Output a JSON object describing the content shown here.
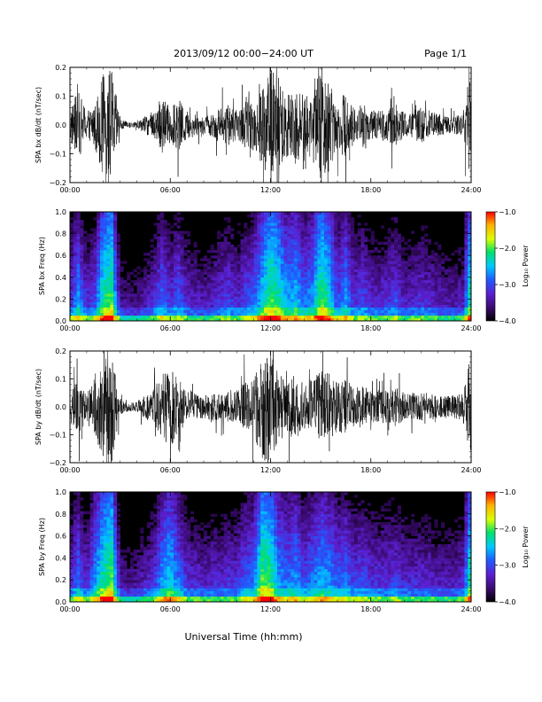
{
  "header": {
    "title": "2013/09/12  00:00−24:00 UT",
    "page": "Page 1/1"
  },
  "footer": {
    "xlabel": "Universal Time (hh:mm)"
  },
  "colors": {
    "trace": "#000000",
    "colormap": [
      "#000000",
      "#3a0a6e",
      "#5b1fd0",
      "#1f5cff",
      "#00c8ff",
      "#00e06a",
      "#d8ff00",
      "#ffb000",
      "#ff0000"
    ]
  },
  "chart_data": [
    {
      "type": "line",
      "ylabel": "SPA bx dB/dt (nT/sec)",
      "x_ticks": [
        "00:00",
        "06:00",
        "12:00",
        "18:00",
        "24:00"
      ],
      "xlim_hours": [
        0,
        24
      ],
      "ylim": [
        -0.2,
        0.2
      ],
      "y_ticks": [
        "0.2",
        "0.1",
        "0.0",
        "−0.1",
        "−0.2"
      ],
      "y_tick_values": [
        0.2,
        0.1,
        0.0,
        -0.1,
        -0.2
      ],
      "envelope": {
        "hours": [
          0.0,
          0.5,
          1.0,
          1.5,
          2.0,
          2.5,
          3.0,
          3.5,
          4.0,
          4.5,
          5.0,
          5.5,
          6.0,
          6.5,
          7.0,
          7.5,
          8.0,
          8.5,
          9.0,
          9.5,
          10.0,
          10.5,
          11.0,
          11.5,
          12.0,
          12.5,
          13.0,
          13.5,
          14.0,
          14.5,
          15.0,
          15.5,
          16.0,
          16.5,
          17.0,
          17.5,
          18.0,
          18.5,
          19.0,
          19.5,
          20.0,
          20.5,
          21.0,
          21.5,
          22.0,
          22.5,
          23.0,
          23.5,
          24.0
        ],
        "amplitude": [
          0.06,
          0.12,
          0.05,
          0.08,
          0.18,
          0.2,
          0.02,
          0.01,
          0.01,
          0.03,
          0.05,
          0.1,
          0.06,
          0.09,
          0.05,
          0.04,
          0.03,
          0.04,
          0.06,
          0.07,
          0.05,
          0.08,
          0.09,
          0.15,
          0.2,
          0.17,
          0.12,
          0.14,
          0.1,
          0.12,
          0.2,
          0.16,
          0.08,
          0.12,
          0.06,
          0.08,
          0.05,
          0.05,
          0.06,
          0.08,
          0.04,
          0.05,
          0.06,
          0.05,
          0.04,
          0.03,
          0.03,
          0.04,
          0.2
        ]
      }
    },
    {
      "type": "heatmap",
      "ylabel": "SPA bx Freq (Hz)",
      "x_ticks": [
        "00:00",
        "06:00",
        "12:00",
        "18:00",
        "24:00"
      ],
      "xlim_hours": [
        0,
        24
      ],
      "ylim": [
        0.0,
        1.0
      ],
      "y_ticks": [
        "1.0",
        "0.8",
        "0.6",
        "0.4",
        "0.2",
        "0.0"
      ],
      "y_tick_values": [
        1.0,
        0.8,
        0.6,
        0.4,
        0.2,
        0.0
      ],
      "colorbar": {
        "label": "Log₁₀ Power",
        "ticks": [
          "−1.0",
          "−2.0",
          "−3.0",
          "−4.0"
        ],
        "tick_values": [
          -1.0,
          -2.0,
          -3.0,
          -4.0
        ],
        "range": [
          -4.0,
          -1.0
        ]
      }
    },
    {
      "type": "line",
      "ylabel": "SPA by dB/dt (nT/sec)",
      "x_ticks": [
        "00:00",
        "06:00",
        "12:00",
        "18:00",
        "24:00"
      ],
      "xlim_hours": [
        0,
        24
      ],
      "ylim": [
        -0.2,
        0.2
      ],
      "y_ticks": [
        "0.2",
        "0.1",
        "0.0",
        "−0.1",
        "−0.2"
      ],
      "y_tick_values": [
        0.2,
        0.1,
        0.0,
        -0.1,
        -0.2
      ],
      "envelope": {
        "hours": [
          0.0,
          0.5,
          1.0,
          1.5,
          2.0,
          2.5,
          3.0,
          3.5,
          4.0,
          4.5,
          5.0,
          5.5,
          6.0,
          6.5,
          7.0,
          7.5,
          8.0,
          8.5,
          9.0,
          9.5,
          10.0,
          10.5,
          11.0,
          11.5,
          12.0,
          12.5,
          13.0,
          13.5,
          14.0,
          14.5,
          15.0,
          15.5,
          16.0,
          16.5,
          17.0,
          17.5,
          18.0,
          18.5,
          19.0,
          19.5,
          20.0,
          20.5,
          21.0,
          21.5,
          22.0,
          22.5,
          23.0,
          23.5,
          24.0
        ],
        "amplitude": [
          0.05,
          0.1,
          0.05,
          0.12,
          0.18,
          0.2,
          0.03,
          0.015,
          0.02,
          0.04,
          0.06,
          0.12,
          0.15,
          0.1,
          0.06,
          0.05,
          0.04,
          0.05,
          0.05,
          0.06,
          0.06,
          0.09,
          0.1,
          0.2,
          0.19,
          0.12,
          0.1,
          0.12,
          0.08,
          0.1,
          0.13,
          0.12,
          0.09,
          0.1,
          0.07,
          0.08,
          0.06,
          0.06,
          0.06,
          0.07,
          0.05,
          0.05,
          0.05,
          0.05,
          0.04,
          0.04,
          0.04,
          0.05,
          0.2
        ]
      }
    },
    {
      "type": "heatmap",
      "ylabel": "SPA by Freq (Hz)",
      "x_ticks": [
        "00:00",
        "06:00",
        "12:00",
        "18:00",
        "24:00"
      ],
      "xlim_hours": [
        0,
        24
      ],
      "ylim": [
        0.0,
        1.0
      ],
      "y_ticks": [
        "1.0",
        "0.8",
        "0.6",
        "0.4",
        "0.2",
        "0.0"
      ],
      "y_tick_values": [
        1.0,
        0.8,
        0.6,
        0.4,
        0.2,
        0.0
      ],
      "colorbar": {
        "label": "Log₁₀ Power",
        "ticks": [
          "−1.0",
          "−2.0",
          "−3.0",
          "−4.0"
        ],
        "tick_values": [
          -1.0,
          -2.0,
          -3.0,
          -4.0
        ],
        "range": [
          -4.0,
          -1.0
        ]
      }
    }
  ]
}
